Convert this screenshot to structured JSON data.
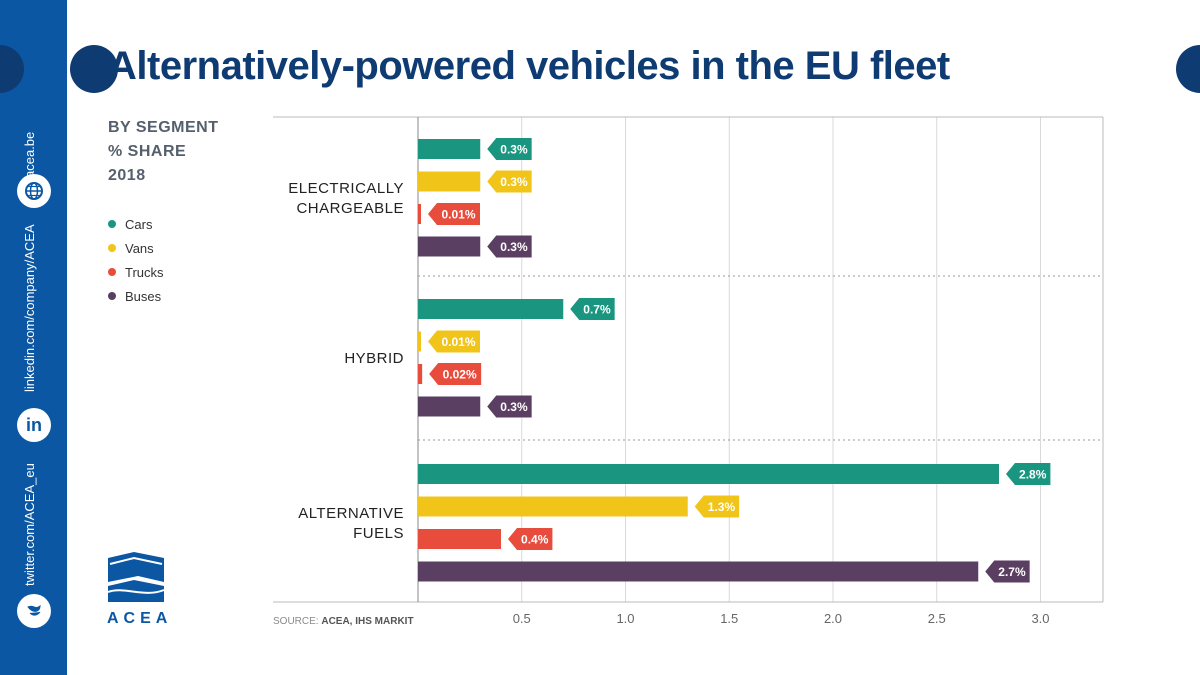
{
  "title": "Alternatively-powered vehicles in the EU fleet",
  "subtitle": [
    "BY SEGMENT",
    "% SHARE",
    "2018"
  ],
  "sidebar": {
    "website": "acea.be",
    "linkedin": "linkedin.com/company/ACEA",
    "twitter": "twitter.com/ACEA_eu"
  },
  "logo_text": "ACEA",
  "source": {
    "label": "SOURCE:",
    "value": "ACEA, IHS MARKIT"
  },
  "colors": {
    "cars": "#1a9680",
    "vans": "#f0c419",
    "trucks": "#e84c3d",
    "buses": "#5b3f63",
    "brand": "#0b57a4",
    "title": "#0f3b73"
  },
  "chart_data": {
    "type": "bar",
    "orientation": "horizontal",
    "categories": [
      [
        "ELECTRICALLY",
        "CHARGEABLE"
      ],
      [
        "HYBRID"
      ],
      [
        "ALTERNATIVE",
        "FUELS"
      ]
    ],
    "series": [
      {
        "name": "Cars",
        "color": "#1a9680",
        "values": [
          0.3,
          0.7,
          2.8
        ],
        "labels": [
          "0.3%",
          "0.7%",
          "2.8%"
        ]
      },
      {
        "name": "Vans",
        "color": "#f0c419",
        "values": [
          0.3,
          0.01,
          1.3
        ],
        "labels": [
          "0.3%",
          "0.01%",
          "1.3%"
        ]
      },
      {
        "name": "Trucks",
        "color": "#e84c3d",
        "values": [
          0.01,
          0.02,
          0.4
        ],
        "labels": [
          "0.01%",
          "0.02%",
          "0.4%"
        ]
      },
      {
        "name": "Buses",
        "color": "#5b3f63",
        "values": [
          0.3,
          0.3,
          2.7
        ],
        "labels": [
          "0.3%",
          "0.3%",
          "2.7%"
        ]
      }
    ],
    "xlim": [
      0,
      3.0
    ],
    "xticks": [
      "0.5",
      "1.0",
      "1.5",
      "2.0",
      "2.5",
      "3.0"
    ],
    "xtick_values": [
      0.5,
      1.0,
      1.5,
      2.0,
      2.5,
      3.0
    ],
    "grid": true,
    "legend": "left"
  }
}
